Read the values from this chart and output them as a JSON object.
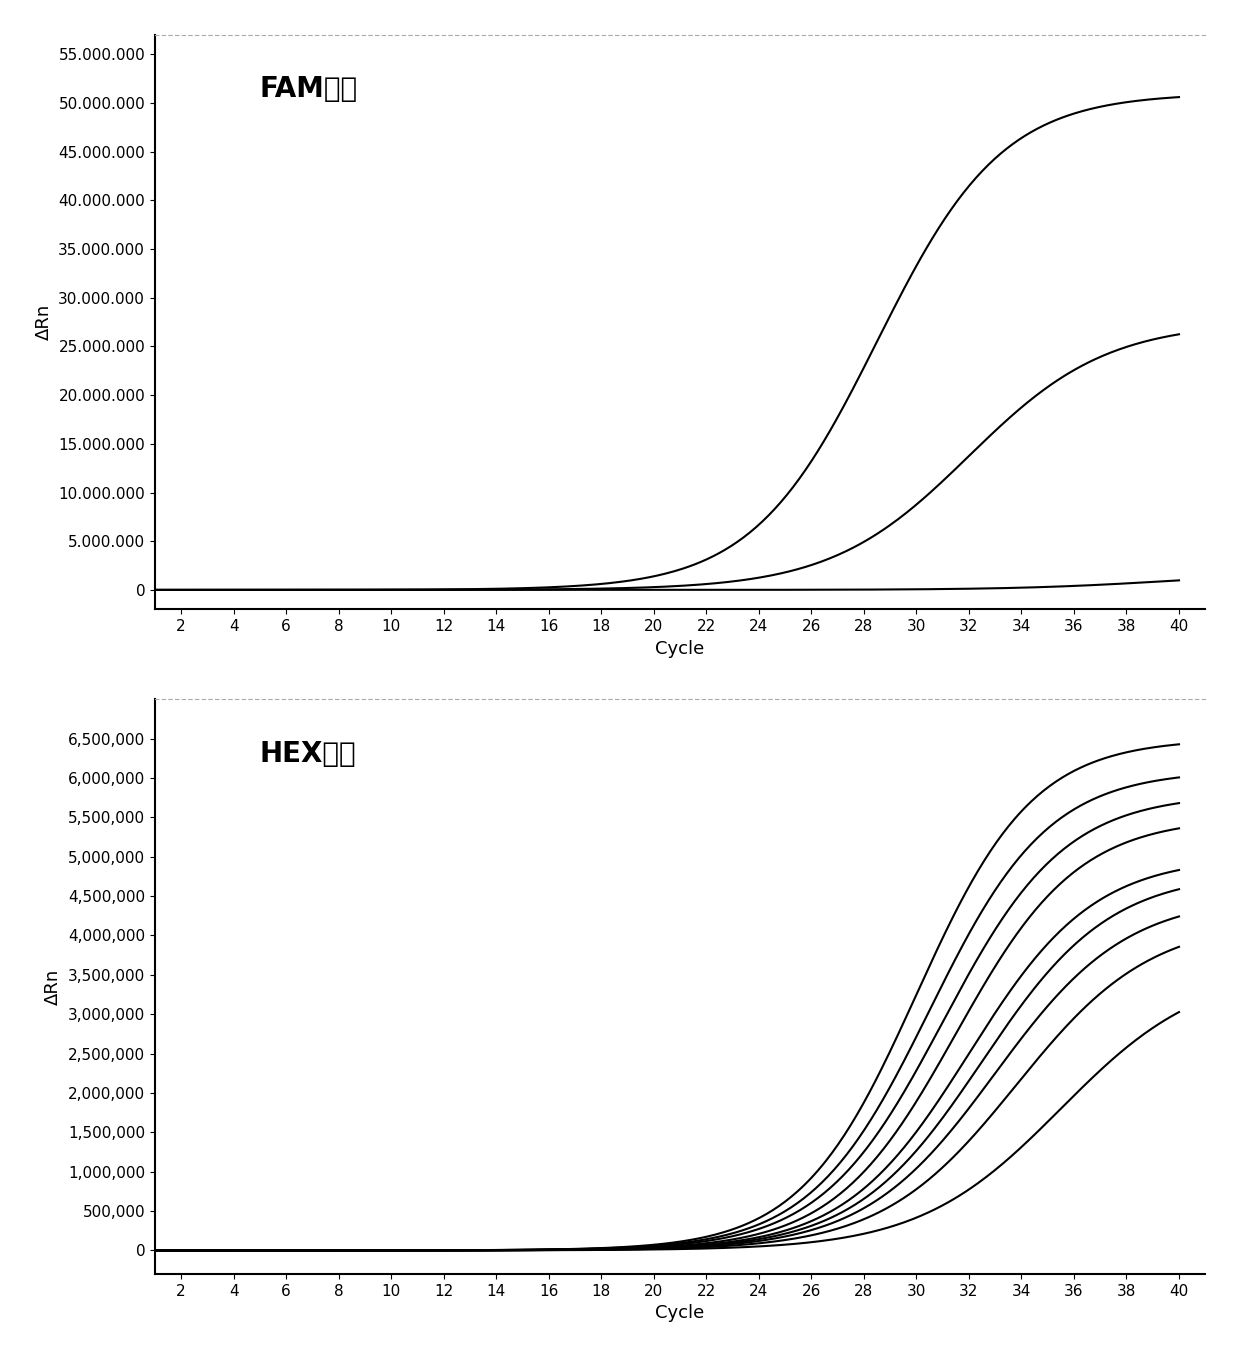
{
  "fam_title": "FAM通道",
  "hex_title": "HEX通道",
  "ylabel": "ΔRn",
  "xlabel": "Cycle",
  "fam_ylim": [
    -2000000,
    57000000
  ],
  "fam_yticks": [
    0,
    5000000,
    10000000,
    15000000,
    20000000,
    25000000,
    30000000,
    35000000,
    40000000,
    45000000,
    50000000,
    55000000
  ],
  "hex_ylim": [
    -300000,
    7000000
  ],
  "hex_yticks": [
    0,
    500000,
    1000000,
    1500000,
    2000000,
    2500000,
    3000000,
    3500000,
    4000000,
    4500000,
    5000000,
    5500000,
    6000000,
    6500000
  ],
  "xticks": [
    2,
    4,
    6,
    8,
    10,
    12,
    14,
    16,
    18,
    20,
    22,
    24,
    26,
    28,
    30,
    32,
    34,
    36,
    38,
    40
  ],
  "xlim": [
    1,
    41
  ],
  "line_color": "#000000",
  "background_color": "#ffffff",
  "fam_curves": [
    {
      "Ct": 28.5,
      "plateau": 51000000,
      "k": 0.42
    },
    {
      "Ct": 32.0,
      "plateau": 27500000,
      "k": 0.38
    },
    {
      "Ct": 39.5,
      "plateau": 1800000,
      "k": 0.35
    }
  ],
  "hex_curves": [
    {
      "Ct": 30.0,
      "plateau": 6500000,
      "k": 0.45
    },
    {
      "Ct": 30.5,
      "plateau": 6100000,
      "k": 0.44
    },
    {
      "Ct": 31.0,
      "plateau": 5800000,
      "k": 0.43
    },
    {
      "Ct": 31.5,
      "plateau": 5500000,
      "k": 0.43
    },
    {
      "Ct": 32.0,
      "plateau": 5000000,
      "k": 0.42
    },
    {
      "Ct": 32.5,
      "plateau": 4800000,
      "k": 0.41
    },
    {
      "Ct": 33.0,
      "plateau": 4500000,
      "k": 0.4
    },
    {
      "Ct": 33.8,
      "plateau": 4200000,
      "k": 0.39
    },
    {
      "Ct": 35.5,
      "plateau": 3600000,
      "k": 0.37
    }
  ],
  "title_fontsize": 20,
  "label_fontsize": 13,
  "tick_fontsize": 11
}
